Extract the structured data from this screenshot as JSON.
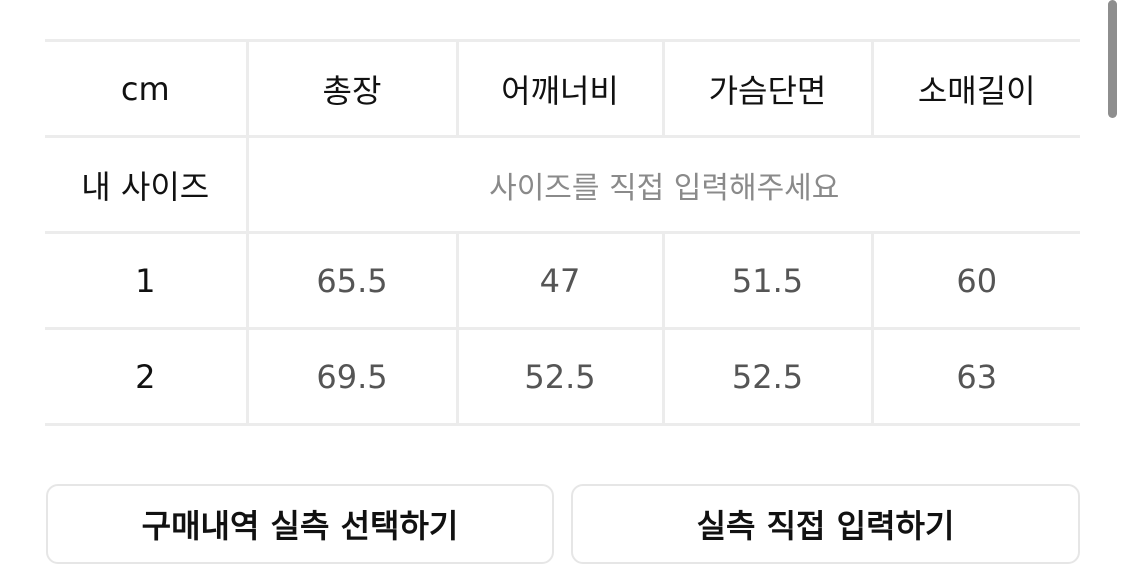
{
  "table": {
    "headers": [
      "cm",
      "총장",
      "어깨너비",
      "가슴단면",
      "소매길이"
    ],
    "my_size": {
      "label": "내 사이즈",
      "placeholder": "사이즈를 직접 입력해주세요"
    },
    "rows": [
      {
        "size": "1",
        "values": [
          "65.5",
          "47",
          "51.5",
          "60"
        ]
      },
      {
        "size": "2",
        "values": [
          "69.5",
          "52.5",
          "52.5",
          "63"
        ]
      }
    ]
  },
  "buttons": {
    "purchase_history": "구매내역 실측 선택하기",
    "direct_input": "실측 직접 입력하기"
  }
}
